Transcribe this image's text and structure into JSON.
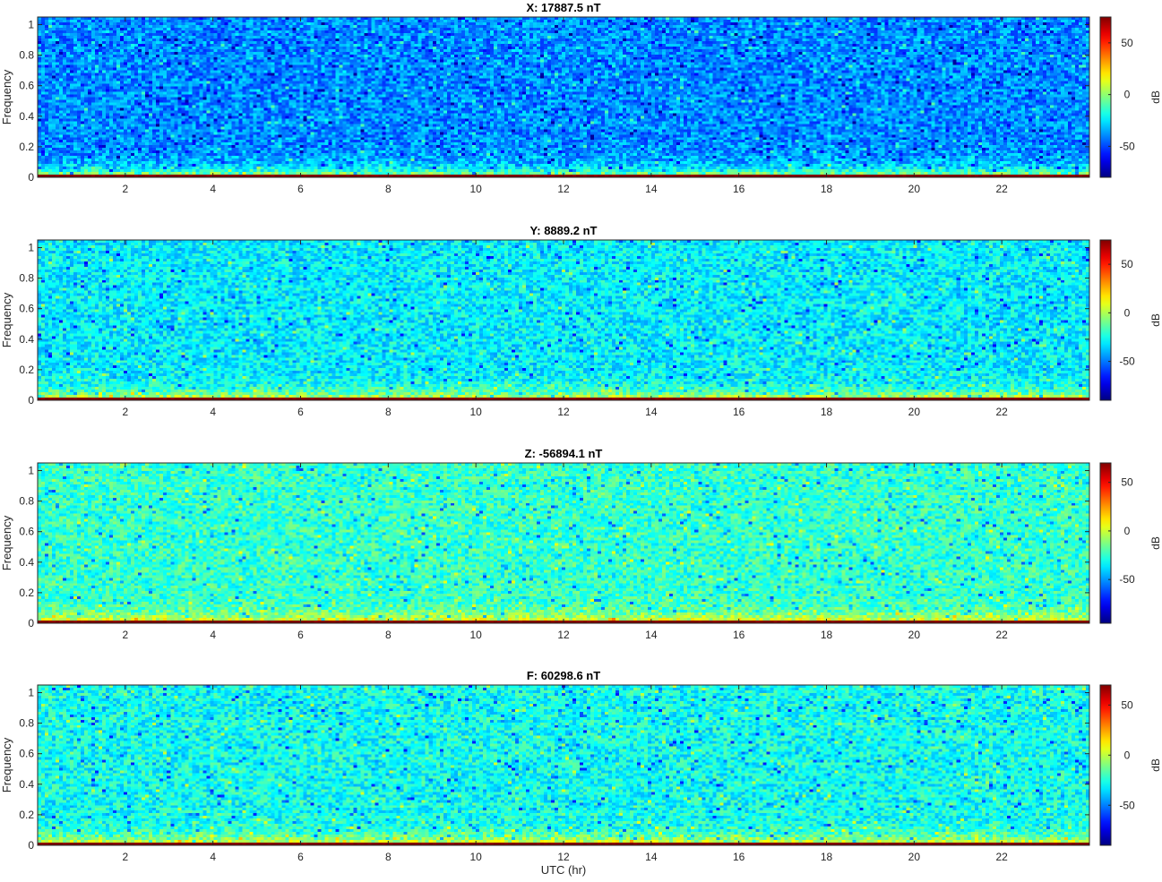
{
  "figure": {
    "xlabel": "UTC (hr)"
  },
  "chart_data": [
    {
      "type": "heatmap",
      "title": "X: 17887.5 nT",
      "ylabel": "Frequency",
      "xlim": [
        0,
        24
      ],
      "ylim": [
        0,
        1.05
      ],
      "xticks": [
        2,
        4,
        6,
        8,
        10,
        12,
        14,
        16,
        18,
        20,
        22
      ],
      "yticks": [
        0,
        0.2,
        0.4,
        0.6,
        0.8,
        1
      ],
      "colorbar": {
        "label": "dB",
        "clim": [
          -80,
          75
        ],
        "ticks": [
          -50,
          0,
          50
        ],
        "colormap": "jet"
      },
      "background_db": -40,
      "lowfreq_db": 20,
      "baseline_db": 75,
      "grid": false
    },
    {
      "type": "heatmap",
      "title": "Y: 8889.2 nT",
      "ylabel": "Frequency",
      "xlim": [
        0,
        24
      ],
      "ylim": [
        0,
        1.05
      ],
      "xticks": [
        2,
        4,
        6,
        8,
        10,
        12,
        14,
        16,
        18,
        20,
        22
      ],
      "yticks": [
        0,
        0.2,
        0.4,
        0.6,
        0.8,
        1
      ],
      "colorbar": {
        "label": "dB",
        "clim": [
          -90,
          75
        ],
        "ticks": [
          -50,
          0,
          50
        ],
        "colormap": "jet"
      },
      "background_db": -30,
      "lowfreq_db": 20,
      "baseline_db": 75,
      "grid": false
    },
    {
      "type": "heatmap",
      "title": "Z: -56894.1 nT",
      "ylabel": "Frequency",
      "xlim": [
        0,
        24
      ],
      "ylim": [
        0,
        1.05
      ],
      "xticks": [
        2,
        4,
        6,
        8,
        10,
        12,
        14,
        16,
        18,
        20,
        22
      ],
      "yticks": [
        0,
        0.2,
        0.4,
        0.6,
        0.8,
        1
      ],
      "colorbar": {
        "label": "dB",
        "clim": [
          -95,
          70
        ],
        "ticks": [
          -50,
          0,
          50
        ],
        "colormap": "jet"
      },
      "background_db": -25,
      "lowfreq_db": 20,
      "baseline_db": 70,
      "grid": false
    },
    {
      "type": "heatmap",
      "title": "F: 60298.6 nT",
      "ylabel": "Frequency",
      "xlim": [
        0,
        24
      ],
      "ylim": [
        0,
        1.05
      ],
      "xticks": [
        2,
        4,
        6,
        8,
        10,
        12,
        14,
        16,
        18,
        20,
        22
      ],
      "yticks": [
        0,
        0.2,
        0.4,
        0.6,
        0.8,
        1
      ],
      "colorbar": {
        "label": "dB",
        "clim": [
          -90,
          70
        ],
        "ticks": [
          -50,
          0,
          50
        ],
        "colormap": "jet"
      },
      "background_db": -28,
      "lowfreq_db": 20,
      "baseline_db": 70,
      "grid": false
    }
  ]
}
